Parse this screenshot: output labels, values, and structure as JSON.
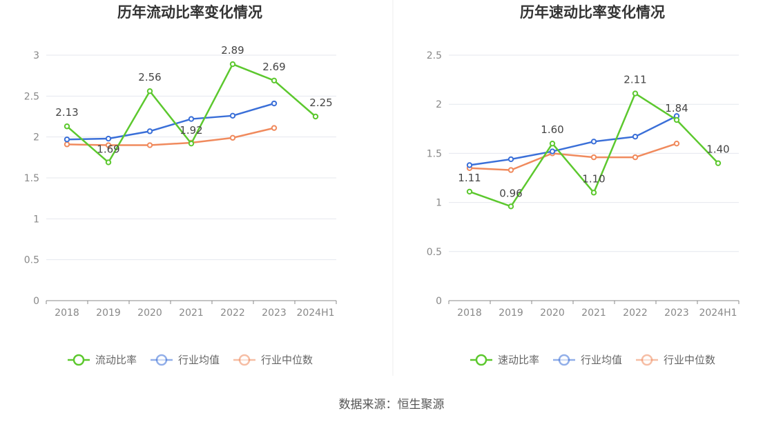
{
  "source": "数据来源：恒生聚源",
  "colors": {
    "green": "#5cc82e",
    "blue": "#3a6fd8",
    "orange": "#f08a5d",
    "axis": "#888888",
    "grid": "#e4e7ee"
  },
  "chart_data": [
    {
      "type": "line",
      "title": "历年流动比率变化情况",
      "categories": [
        "2018",
        "2019",
        "2020",
        "2021",
        "2022",
        "2023",
        "2024H1"
      ],
      "ylim": [
        0,
        3
      ],
      "yticks": [
        "0",
        "0.5",
        "1",
        "1.5",
        "2",
        "2.5",
        "3"
      ],
      "ytick_values": [
        0,
        0.5,
        1,
        1.5,
        2,
        2.5,
        3
      ],
      "grid": true,
      "legend_position": "bottom",
      "series": [
        {
          "name": "流动比率",
          "color": "#5cc82e",
          "values": [
            2.13,
            1.69,
            2.56,
            1.92,
            2.89,
            2.69,
            2.25
          ],
          "labels": [
            "2.13",
            "1.69",
            "2.56",
            "1.92",
            "2.89",
            "2.69",
            "2.25"
          ]
        },
        {
          "name": "行业均值",
          "color": "#3a6fd8",
          "values": [
            1.97,
            1.98,
            2.07,
            2.22,
            2.26,
            2.41,
            null
          ]
        },
        {
          "name": "行业中位数",
          "color": "#f08a5d",
          "values": [
            1.91,
            1.9,
            1.9,
            1.93,
            1.99,
            2.11,
            null
          ]
        }
      ]
    },
    {
      "type": "line",
      "title": "历年速动比率变化情况",
      "categories": [
        "2018",
        "2019",
        "2020",
        "2021",
        "2022",
        "2023",
        "2024H1"
      ],
      "ylim": [
        0,
        2.5
      ],
      "yticks": [
        "0",
        "0.5",
        "1",
        "1.5",
        "2",
        "2.5"
      ],
      "ytick_values": [
        0,
        0.5,
        1,
        1.5,
        2,
        2.5
      ],
      "grid": true,
      "legend_position": "bottom",
      "series": [
        {
          "name": "速动比率",
          "color": "#5cc82e",
          "values": [
            1.11,
            0.96,
            1.6,
            1.1,
            2.11,
            1.84,
            1.4
          ],
          "labels": [
            "1.11",
            "0.96",
            "1.60",
            "1.10",
            "2.11",
            "1.84",
            "1.40"
          ]
        },
        {
          "name": "行业均值",
          "color": "#3a6fd8",
          "values": [
            1.38,
            1.44,
            1.52,
            1.62,
            1.67,
            1.88,
            null
          ]
        },
        {
          "name": "行业中位数",
          "color": "#f08a5d",
          "values": [
            1.35,
            1.33,
            1.5,
            1.46,
            1.46,
            1.6,
            null
          ]
        }
      ]
    }
  ]
}
